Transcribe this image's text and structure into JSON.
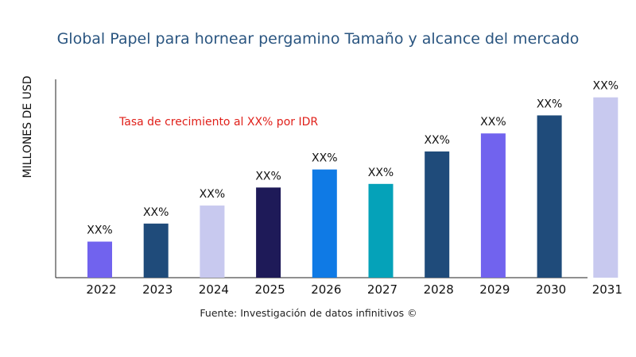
{
  "chart_data": {
    "type": "bar",
    "title": "Global Papel para hornear pergamino Tamaño y alcance del mercado",
    "xlabel": "",
    "ylabel": "MILLONES DE USD",
    "annotation": "Tasa de crecimiento al XX% por IDR",
    "source": "Fuente: Investigación de datos infinitivos ©",
    "categories": [
      "2022",
      "2023",
      "2024",
      "2025",
      "2026",
      "2027",
      "2028",
      "2029",
      "2030",
      "2031"
    ],
    "values": [
      20,
      30,
      40,
      50,
      60,
      52,
      70,
      80,
      90,
      100
    ],
    "data_labels": [
      "XX%",
      "XX%",
      "XX%",
      "XX%",
      "XX%",
      "XX%",
      "XX%",
      "XX%",
      "XX%",
      "XX%"
    ],
    "colors": [
      "#7163ee",
      "#1f4b7a",
      "#c8c9ef",
      "#1e1a58",
      "#0f7ae5",
      "#05a2b9",
      "#1f4b7a",
      "#7163ee",
      "#1f4b7a",
      "#c8c9ef"
    ],
    "ylim": [
      0,
      110
    ],
    "grid": false,
    "legend": "none"
  }
}
